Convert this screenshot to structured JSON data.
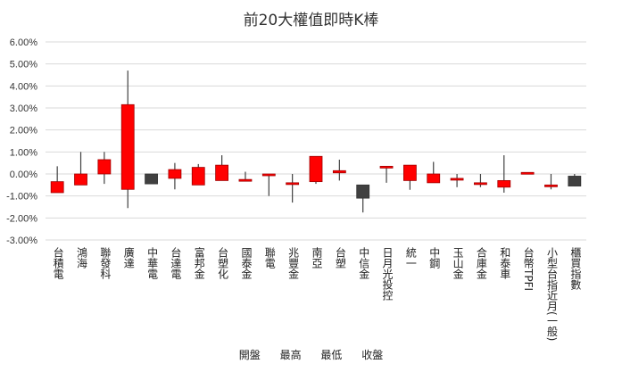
{
  "chart_data": {
    "type": "candlestick",
    "title": "前20大權值即時K棒",
    "ylim": [
      -3,
      6
    ],
    "y_ticks": [
      "-3.00%",
      "-2.00%",
      "-1.00%",
      "0.00%",
      "1.00%",
      "2.00%",
      "3.00%",
      "4.00%",
      "5.00%",
      "6.00%"
    ],
    "grid": true,
    "legend": [
      "開盤",
      "最高",
      "最低",
      "收盤"
    ],
    "legend_position": "bottom",
    "colors": {
      "up": "#ff0000",
      "down": "#404040",
      "wick": "#404040",
      "grid": "#d9d9d9"
    },
    "categories": [
      "台積電",
      "鴻海",
      "聯發科",
      "廣達",
      "中華電",
      "台達電",
      "富邦金",
      "台塑化",
      "國泰金",
      "聯電",
      "兆豐金",
      "南亞",
      "台塑",
      "中信金",
      "日月光投控",
      "統一",
      "中鋼",
      "玉山金",
      "合庫金",
      "和泰車",
      "台幣TPFI",
      "小型台指近月(一般)",
      "櫃買指數"
    ],
    "open": [
      -0.85,
      -0.5,
      0.0,
      -0.7,
      0.0,
      -0.2,
      -0.5,
      -0.3,
      -0.25,
      0.0,
      -0.4,
      -0.35,
      0.05,
      -0.5,
      0.35,
      -0.3,
      -0.4,
      -0.2,
      -0.4,
      -0.6,
      0.07,
      -0.5,
      -0.1
    ],
    "high": [
      0.35,
      1.0,
      1.0,
      4.7,
      0.0,
      0.5,
      0.45,
      0.85,
      0.1,
      0.0,
      0.0,
      0.8,
      0.65,
      -0.5,
      0.35,
      0.4,
      0.55,
      0.0,
      0.0,
      0.85,
      0.07,
      0.0,
      0.0
    ],
    "low": [
      -0.85,
      -0.5,
      -0.45,
      -1.55,
      -0.45,
      -0.7,
      -0.5,
      -0.3,
      -0.25,
      -1.0,
      -1.3,
      -0.45,
      -0.3,
      -1.75,
      -0.4,
      -0.72,
      -0.4,
      -0.6,
      -0.6,
      -0.85,
      0.0,
      -0.7,
      -0.55
    ],
    "close": [
      -0.35,
      0.0,
      0.65,
      3.15,
      -0.45,
      0.2,
      0.3,
      0.4,
      -0.25,
      0.0,
      -0.4,
      0.8,
      0.15,
      -1.1,
      0.35,
      0.4,
      0.0,
      -0.2,
      -0.4,
      -0.3,
      0.07,
      -0.5,
      -0.55
    ]
  }
}
